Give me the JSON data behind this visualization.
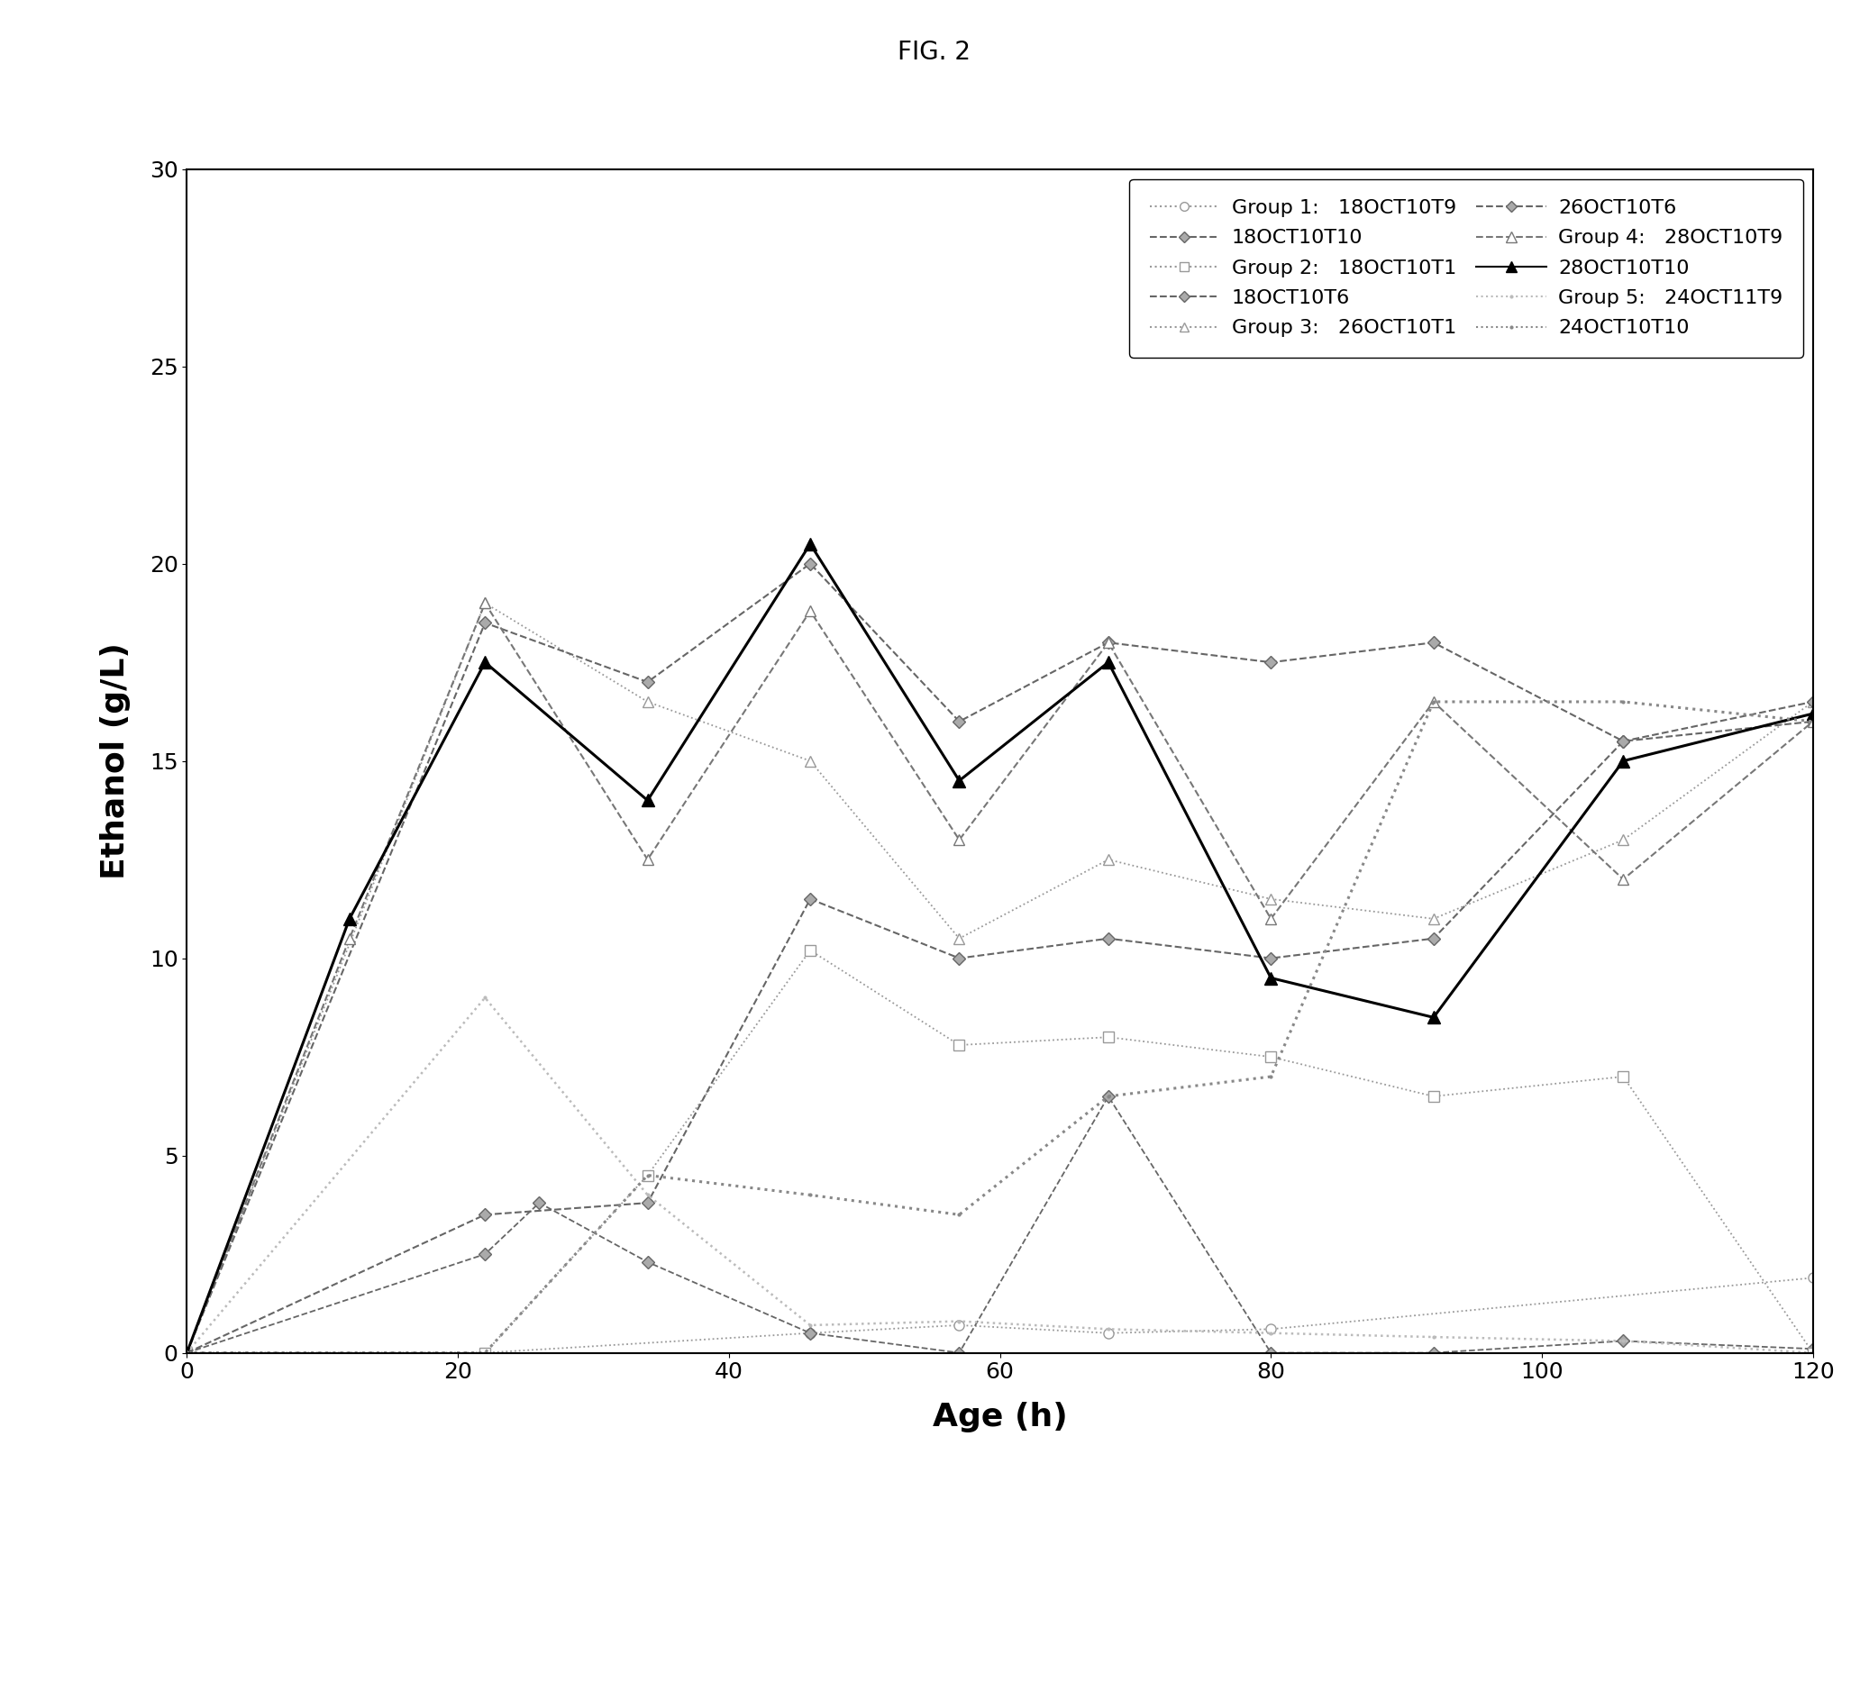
{
  "title": "FIG. 2",
  "xlabel": "Age (h)",
  "ylabel": "Ethanol (g/L)",
  "xlim": [
    0,
    120
  ],
  "ylim": [
    0,
    30
  ],
  "xticks": [
    0,
    20,
    40,
    60,
    80,
    100,
    120
  ],
  "yticks": [
    0,
    5,
    10,
    15,
    20,
    25,
    30
  ],
  "series": [
    {
      "label": "18OCT10T9",
      "group": "Group 1",
      "color": "#999999",
      "linestyle": "dotted",
      "marker": "o",
      "markersize": 8,
      "markerfacecolor": "white",
      "markeredgecolor": "#999999",
      "linewidth": 1.3,
      "x": [
        0,
        22,
        46,
        57,
        68,
        80,
        120
      ],
      "y": [
        0,
        0,
        0.5,
        0.7,
        0.5,
        0.6,
        1.9
      ]
    },
    {
      "label": "18OCT10T10",
      "group": "Group 1",
      "color": "#666666",
      "linestyle": "dashed",
      "marker": "D",
      "markersize": 7,
      "markerfacecolor": "#aaaaaa",
      "markeredgecolor": "#666666",
      "linewidth": 1.3,
      "x": [
        0,
        22,
        26,
        34,
        46,
        57,
        68,
        80,
        92,
        106,
        120
      ],
      "y": [
        0,
        2.5,
        3.8,
        2.3,
        0.5,
        0.0,
        6.5,
        0,
        0,
        0.3,
        0.1
      ]
    },
    {
      "label": "18OCT10T1",
      "group": "Group 2",
      "color": "#999999",
      "linestyle": "dotted",
      "marker": "s",
      "markersize": 8,
      "markerfacecolor": "white",
      "markeredgecolor": "#999999",
      "linewidth": 1.3,
      "x": [
        0,
        22,
        34,
        46,
        57,
        68,
        80,
        92,
        106,
        120
      ],
      "y": [
        0,
        0,
        4.5,
        10.2,
        7.8,
        8.0,
        7.5,
        6.5,
        7.0,
        0
      ]
    },
    {
      "label": "18OCT10T6",
      "group": "Group 2",
      "color": "#666666",
      "linestyle": "dashed",
      "marker": "D",
      "markersize": 7,
      "markerfacecolor": "#aaaaaa",
      "markeredgecolor": "#666666",
      "linewidth": 1.5,
      "x": [
        0,
        22,
        34,
        46,
        57,
        68,
        80,
        92,
        106,
        120
      ],
      "y": [
        0,
        3.5,
        3.8,
        11.5,
        10.0,
        10.5,
        10.0,
        10.5,
        15.5,
        16.0
      ]
    },
    {
      "label": "26OCT10T1",
      "group": "Group 3",
      "color": "#999999",
      "linestyle": "dotted",
      "marker": "^",
      "markersize": 8,
      "markerfacecolor": "white",
      "markeredgecolor": "#999999",
      "linewidth": 1.3,
      "x": [
        0,
        22,
        34,
        46,
        57,
        68,
        80,
        92,
        106,
        120
      ],
      "y": [
        0,
        19.0,
        16.5,
        15.0,
        10.5,
        12.5,
        11.5,
        11.0,
        13.0,
        16.5
      ]
    },
    {
      "label": "26OCT10T6",
      "group": "Group 3",
      "color": "#666666",
      "linestyle": "dashed",
      "marker": "D",
      "markersize": 7,
      "markerfacecolor": "#aaaaaa",
      "markeredgecolor": "#666666",
      "linewidth": 1.5,
      "x": [
        0,
        22,
        34,
        46,
        57,
        68,
        80,
        92,
        106,
        120
      ],
      "y": [
        0,
        18.5,
        17.0,
        20.0,
        16.0,
        18.0,
        17.5,
        18.0,
        15.5,
        16.5
      ]
    },
    {
      "label": "28OCT10T9",
      "group": "Group 4",
      "color": "#777777",
      "linestyle": "--",
      "marker": "^",
      "markersize": 9,
      "markerfacecolor": "white",
      "markeredgecolor": "#777777",
      "linewidth": 1.5,
      "x": [
        0,
        12,
        22,
        34,
        46,
        57,
        68,
        80,
        92,
        106,
        120
      ],
      "y": [
        0,
        10.5,
        19.0,
        12.5,
        18.8,
        13.0,
        18.0,
        11.0,
        16.5,
        12.0,
        16.0
      ]
    },
    {
      "label": "28OCT10T10",
      "group": "Group 4",
      "color": "#000000",
      "linestyle": "-",
      "marker": "^",
      "markersize": 10,
      "markerfacecolor": "#000000",
      "markeredgecolor": "#000000",
      "linewidth": 2.2,
      "x": [
        0,
        12,
        22,
        34,
        46,
        57,
        68,
        80,
        92,
        106,
        120
      ],
      "y": [
        0,
        11.0,
        17.5,
        14.0,
        20.5,
        14.5,
        17.5,
        9.5,
        8.5,
        15.0,
        16.2
      ]
    },
    {
      "label": "24OCT11T9",
      "group": "Group 5",
      "color": "#bbbbbb",
      "linestyle": "dotted",
      "marker": ".",
      "markersize": 4,
      "markerfacecolor": "#bbbbbb",
      "markeredgecolor": "#bbbbbb",
      "linewidth": 1.8,
      "x": [
        0,
        22,
        34,
        46,
        57,
        68,
        80,
        92,
        106,
        120
      ],
      "y": [
        0,
        9.0,
        4.0,
        0.7,
        0.8,
        0.6,
        0.5,
        0.4,
        0.3,
        0
      ]
    },
    {
      "label": "24OCT10T10",
      "group": "Group 5",
      "color": "#888888",
      "linestyle": "dotted",
      "marker": ".",
      "markersize": 4,
      "markerfacecolor": "#888888",
      "markeredgecolor": "#888888",
      "linewidth": 2.2,
      "x": [
        0,
        22,
        34,
        46,
        57,
        68,
        80,
        92,
        106,
        120
      ],
      "y": [
        0,
        0,
        4.5,
        4.0,
        3.5,
        6.5,
        7.0,
        16.5,
        16.5,
        16.0
      ]
    }
  ],
  "legend_groups": [
    {
      "group": "Group 1:",
      "left_label": "18OCT10T9",
      "right_label": "18OCT10T10"
    },
    {
      "group": "Group 2:",
      "left_label": "18OCT10T1",
      "right_label": "18OCT10T6"
    },
    {
      "group": "Group 3:",
      "left_label": "26OCT10T1",
      "right_label": "26OCT10T6"
    },
    {
      "group": "Group 4:",
      "left_label": "28OCT10T9",
      "right_label": "28OCT10T10"
    },
    {
      "group": "Group 5:",
      "left_label": "24OCT11T9",
      "right_label": "24OCT10T10"
    }
  ],
  "group_styles": {
    "18OCT10T9": {
      "color": "#999999",
      "linestyle": "dotted",
      "marker": "o",
      "mfc": "white",
      "ms": 7
    },
    "18OCT10T10": {
      "color": "#666666",
      "linestyle": "dashed",
      "marker": "D",
      "mfc": "#aaaaaa",
      "ms": 6
    },
    "18OCT10T1": {
      "color": "#999999",
      "linestyle": "dotted",
      "marker": "s",
      "mfc": "white",
      "ms": 7
    },
    "18OCT10T6": {
      "color": "#666666",
      "linestyle": "dashed",
      "marker": "D",
      "mfc": "#aaaaaa",
      "ms": 6
    },
    "26OCT10T1": {
      "color": "#999999",
      "linestyle": "dotted",
      "marker": "^",
      "mfc": "white",
      "ms": 7
    },
    "26OCT10T6": {
      "color": "#666666",
      "linestyle": "dashed",
      "marker": "D",
      "mfc": "#aaaaaa",
      "ms": 6
    },
    "28OCT10T9": {
      "color": "#777777",
      "linestyle": "--",
      "marker": "^",
      "mfc": "white",
      "ms": 8
    },
    "28OCT10T10": {
      "color": "#000000",
      "linestyle": "-",
      "marker": "^",
      "mfc": "#000000",
      "ms": 9
    },
    "24OCT11T9": {
      "color": "#bbbbbb",
      "linestyle": "dotted",
      "marker": ".",
      "mfc": "#bbbbbb",
      "ms": 4
    },
    "24OCT10T10": {
      "color": "#888888",
      "linestyle": "dotted",
      "marker": ".",
      "mfc": "#888888",
      "ms": 4
    }
  }
}
